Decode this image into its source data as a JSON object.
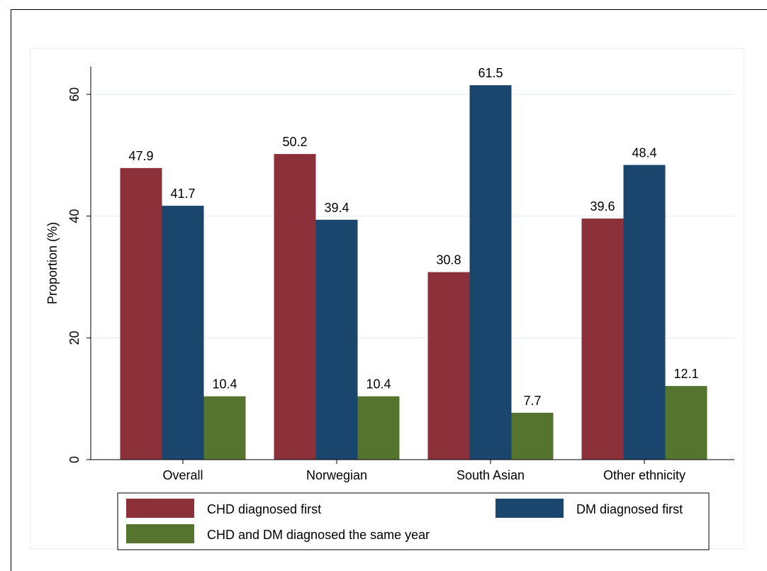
{
  "chart_data": {
    "type": "bar",
    "ylabel": "Proportion (%)",
    "ylim": [
      0,
      65
    ],
    "yticks": [
      0,
      20,
      40,
      60
    ],
    "grid": true,
    "legend_position": "bottom",
    "categories": [
      "Overall",
      "Norwegian",
      "South Asian",
      "Other ethnicity"
    ],
    "series": [
      {
        "name": "CHD diagnosed first",
        "color": "#8c3139",
        "values": [
          47.9,
          50.2,
          30.8,
          39.6
        ],
        "labels": [
          "47.9",
          "50.2",
          "30.8",
          "39.6"
        ]
      },
      {
        "name": "DM diagnosed first",
        "color": "#1a466e",
        "values": [
          41.7,
          39.4,
          61.5,
          48.4
        ],
        "labels": [
          "41.7",
          "39.4",
          "61.5",
          "48.4"
        ]
      },
      {
        "name": "CHD and DM diagnosed the same year",
        "color": "#55752f",
        "values": [
          10.4,
          10.4,
          7.7,
          12.1
        ],
        "labels": [
          "10.4",
          "10.4",
          "7.7",
          "12.1"
        ]
      }
    ]
  }
}
